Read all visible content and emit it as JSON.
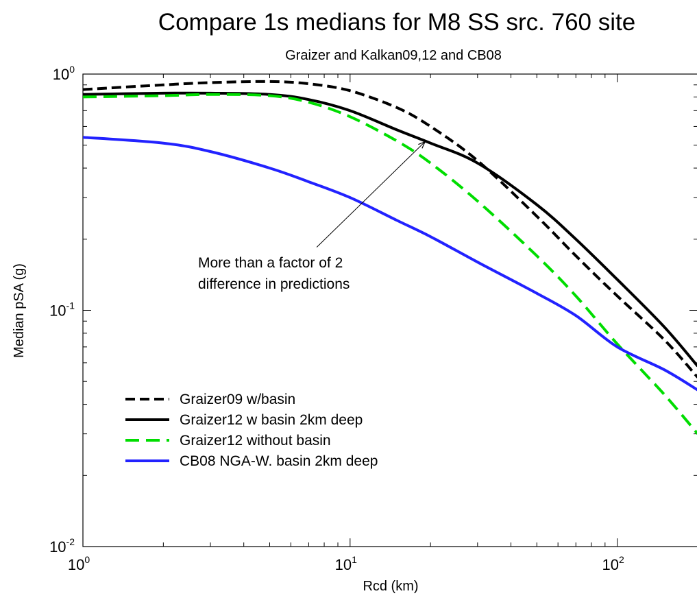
{
  "chart_data": {
    "type": "line",
    "title": "Compare 1s medians for M8 SS src. 760 site",
    "subtitle": "Graizer and Kalkan09,12 and CB08",
    "xlabel": "Rcd (km)",
    "ylabel": "Median pSA (g)",
    "xscale": "log",
    "yscale": "log",
    "xlim": [
      1,
      200
    ],
    "ylim": [
      0.01,
      1
    ],
    "x_ticks": [
      {
        "base": "10",
        "exp": "0",
        "value": 1
      },
      {
        "base": "10",
        "exp": "1",
        "value": 10
      },
      {
        "base": "10",
        "exp": "2",
        "value": 100
      }
    ],
    "y_ticks": [
      {
        "base": "10",
        "exp": "-2",
        "value": 0.01
      },
      {
        "base": "10",
        "exp": "-1",
        "value": 0.1
      },
      {
        "base": "10",
        "exp": "0",
        "value": 1
      }
    ],
    "legend_position": "lower-left",
    "series": [
      {
        "name": "Graizer09 w/basin",
        "color": "#000000",
        "style": "dashed",
        "x": [
          1,
          2,
          3,
          5,
          7,
          10,
          15,
          20,
          30,
          50,
          70,
          100,
          150,
          200
        ],
        "y": [
          0.86,
          0.9,
          0.92,
          0.93,
          0.91,
          0.85,
          0.72,
          0.6,
          0.43,
          0.25,
          0.17,
          0.115,
          0.075,
          0.052
        ]
      },
      {
        "name": "Graizer12 w basin 2km deep",
        "color": "#000000",
        "style": "solid",
        "x": [
          1,
          2,
          3,
          5,
          7,
          10,
          15,
          20,
          30,
          50,
          70,
          100,
          150,
          200
        ],
        "y": [
          0.82,
          0.83,
          0.83,
          0.82,
          0.78,
          0.7,
          0.58,
          0.51,
          0.42,
          0.28,
          0.2,
          0.135,
          0.085,
          0.058
        ]
      },
      {
        "name": "Graizer12 without basin",
        "color": "#00dd00",
        "style": "dashed",
        "x": [
          1,
          2,
          3,
          5,
          7,
          10,
          15,
          20,
          30,
          50,
          70,
          100,
          150,
          200
        ],
        "y": [
          0.8,
          0.81,
          0.82,
          0.81,
          0.76,
          0.66,
          0.52,
          0.42,
          0.29,
          0.17,
          0.115,
          0.072,
          0.044,
          0.03
        ]
      },
      {
        "name": "CB08 NGA-W. basin 2km deep",
        "color": "#2222ff",
        "style": "solid",
        "x": [
          1,
          2,
          3,
          5,
          7,
          10,
          15,
          20,
          30,
          50,
          70,
          100,
          150,
          200
        ],
        "y": [
          0.54,
          0.51,
          0.47,
          0.4,
          0.35,
          0.3,
          0.24,
          0.205,
          0.16,
          0.118,
          0.095,
          0.07,
          0.056,
          0.046
        ]
      }
    ],
    "annotations": [
      {
        "lines": [
          "More than a factor of 2",
          "difference in predictions"
        ],
        "arrow_from": {
          "x": 7.5,
          "y": 0.185
        },
        "arrow_to": {
          "x": 19,
          "y": 0.515
        }
      }
    ]
  }
}
